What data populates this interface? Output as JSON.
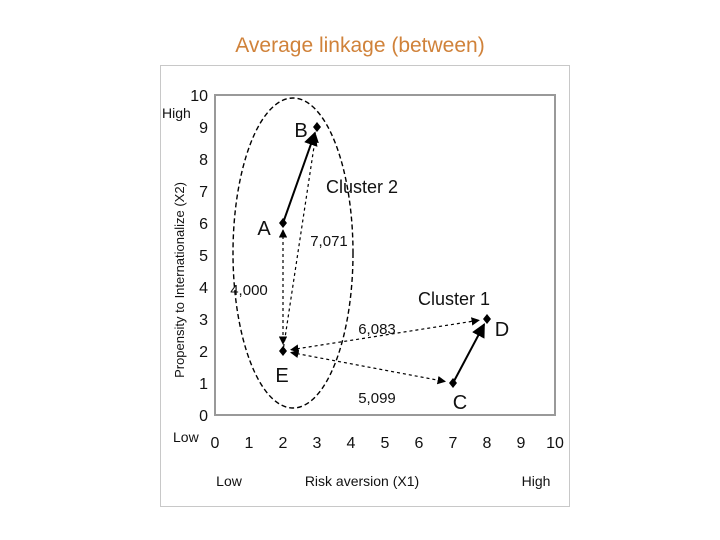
{
  "title": "Average linkage (between)",
  "y_axis": {
    "label": "Propensity to Internationalize (X2)",
    "high_label": "High",
    "low_label": "Low",
    "ticks": [
      "0",
      "1",
      "2",
      "3",
      "4",
      "5",
      "6",
      "7",
      "8",
      "9",
      "10"
    ]
  },
  "x_axis": {
    "label": "Risk aversion (X1)",
    "low_label": "Low",
    "high_label": "High",
    "ticks": [
      "0",
      "1",
      "2",
      "3",
      "4",
      "5",
      "6",
      "7",
      "8",
      "9",
      "10"
    ]
  },
  "points": [
    {
      "name": "A",
      "x": 2,
      "y": 6
    },
    {
      "name": "B",
      "x": 3,
      "y": 9
    },
    {
      "name": "C",
      "x": 7,
      "y": 1
    },
    {
      "name": "D",
      "x": 8,
      "y": 3
    },
    {
      "name": "E",
      "x": 2,
      "y": 2
    }
  ],
  "clusters": [
    {
      "name": "Cluster 2"
    },
    {
      "name": "Cluster 1"
    }
  ],
  "distances": [
    {
      "label": "7,071"
    },
    {
      "label": "4,000"
    },
    {
      "label": "6,083"
    },
    {
      "label": "5,099"
    }
  ],
  "colors": {
    "title": "#d0823a",
    "plot_border": "#999999",
    "line": "#000000"
  }
}
